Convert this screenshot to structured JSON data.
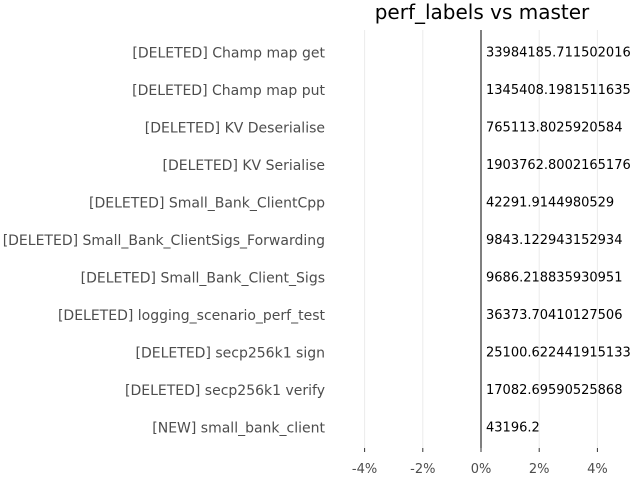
{
  "chart_data": {
    "type": "bar",
    "title": "perf_labels vs master",
    "xlabel": "",
    "ylabel": "",
    "orientation": "horizontal",
    "xlim": [
      -5,
      5
    ],
    "xtick_values": [
      -4,
      -2,
      0,
      2,
      4
    ],
    "xtick_labels": [
      "-4%",
      "-2%",
      "0%",
      "2%",
      "4%"
    ],
    "grid": true,
    "categories": [
      "[DELETED] Champ map get",
      "[DELETED] Champ map put",
      "[DELETED] KV Deserialise",
      "[DELETED] KV Serialise",
      "[DELETED] Small_Bank_ClientCpp",
      "[DELETED] Small_Bank_ClientSigs_Forwarding",
      "[DELETED] Small_Bank_Client_Sigs",
      "[DELETED] logging_scenario_perf_test",
      "[DELETED] secp256k1 sign",
      "[DELETED] secp256k1 verify",
      "[NEW] small_bank_client"
    ],
    "values": [
      0,
      0,
      0,
      0,
      0,
      0,
      0,
      0,
      0,
      0,
      0
    ],
    "data_labels": [
      "33984185.711502016",
      "1345408.1981511635",
      "765113.8025920584",
      "1903762.8002165176",
      "42291.9144980529",
      "9843.122943152934",
      "9686.218835930951",
      "36373.70410127506",
      "25100.622441915133",
      "17082.69590525868",
      "43196.2"
    ]
  }
}
